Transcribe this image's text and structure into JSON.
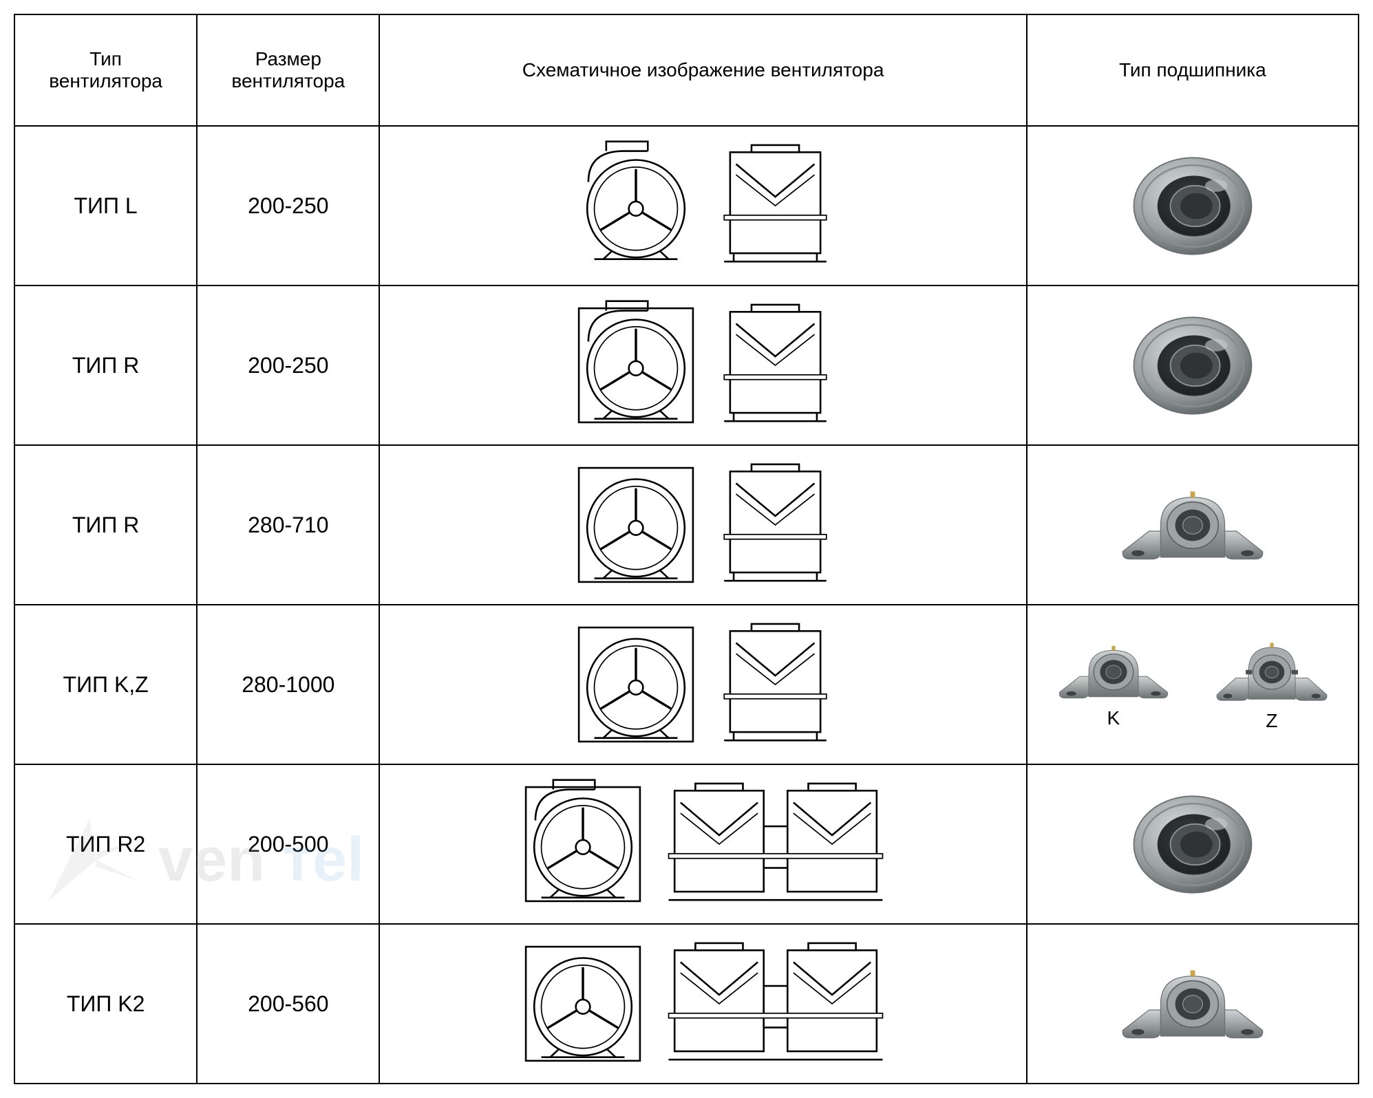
{
  "headers": {
    "fan_type": "Тип\nвентилятора",
    "fan_size": "Размер\nвентилятора",
    "schematic": "Схематичное изображение вентилятора",
    "bearing_type": "Тип подшипника"
  },
  "rows": [
    {
      "type": "ТИП L",
      "size": "200-250",
      "schematic_variant": "scroll_open",
      "bearing_variant": "insert"
    },
    {
      "type": "ТИП R",
      "size": "200-250",
      "schematic_variant": "scroll_boxed",
      "bearing_variant": "insert"
    },
    {
      "type": "ТИП R",
      "size": "280-710",
      "schematic_variant": "boxed",
      "bearing_variant": "pillow"
    },
    {
      "type": "ТИП K,Z",
      "size": "280-1000",
      "schematic_variant": "boxed",
      "bearing_variant": "kz"
    },
    {
      "type": "ТИП R2",
      "size": "200-500",
      "schematic_variant": "scroll_double",
      "bearing_variant": "insert"
    },
    {
      "type": "ТИП K2",
      "size": "200-560",
      "schematic_variant": "boxed_double",
      "bearing_variant": "pillow"
    }
  ],
  "kz_labels": {
    "k": "K",
    "z": "Z"
  },
  "column_widths": {
    "type": 220,
    "size": 220,
    "schematic": 780,
    "bearing": 400
  },
  "colors": {
    "border": "#000000",
    "text": "#000000",
    "bg": "#ffffff",
    "bearing_metal_light": "#d8dcdc",
    "bearing_metal_mid": "#9ea4a6",
    "bearing_metal_dark": "#5b6163",
    "bearing_dark_ring": "#3a3f41",
    "pillow_light": "#cfd3d4",
    "pillow_mid": "#a9adaf",
    "pillow_dark": "#6d7375",
    "schematic_stroke": "#000000",
    "schematic_fill": "#ffffff"
  },
  "fonts": {
    "header_size": 28,
    "cell_size": 32,
    "kz_label_size": 28
  },
  "watermark": {
    "text": "venтel",
    "color": "#888888"
  }
}
